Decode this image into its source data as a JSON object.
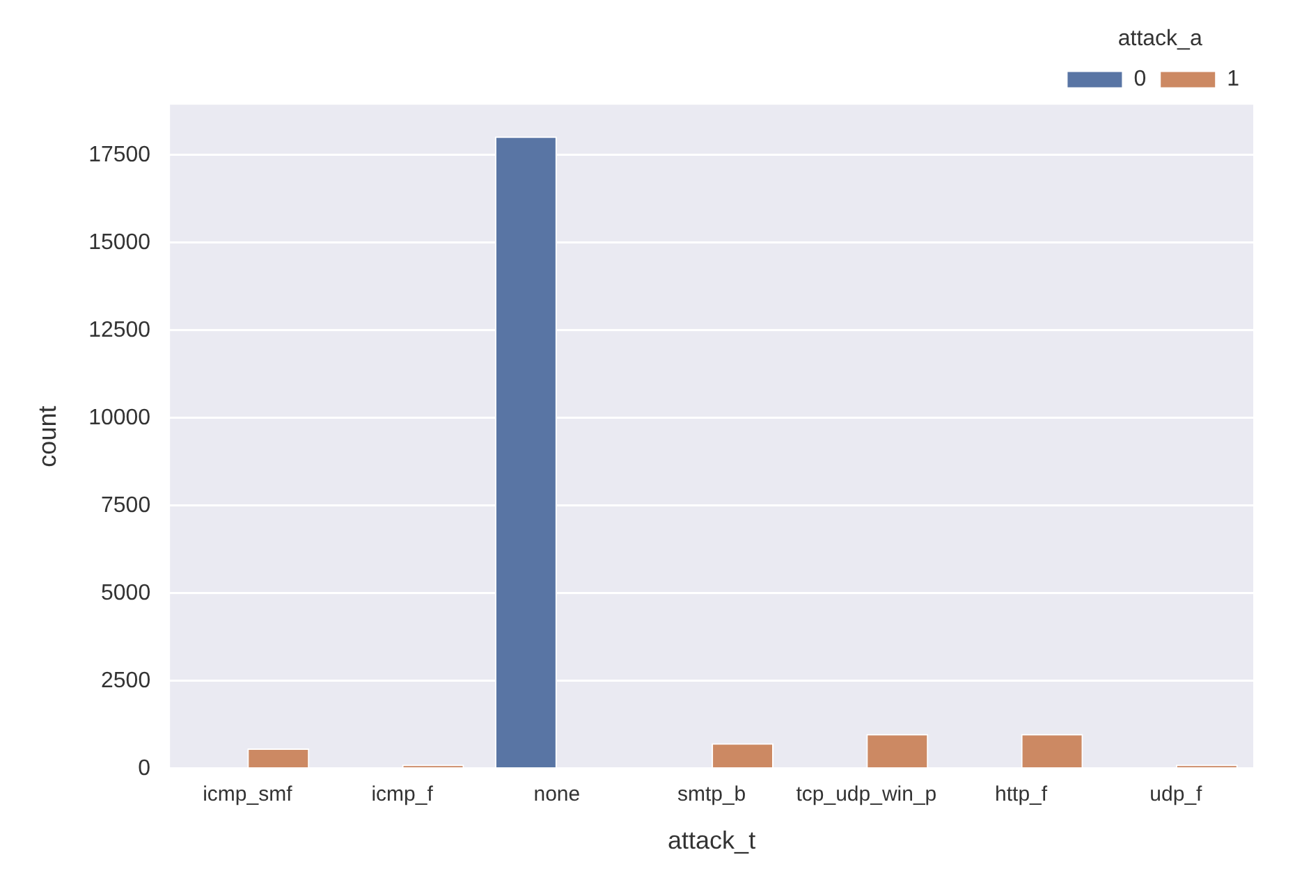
{
  "chart_data": {
    "type": "bar",
    "xlabel": "attack_t",
    "ylabel": "count",
    "legend_title": "attack_a",
    "categories": [
      "icmp_smf",
      "icmp_f",
      "none",
      "smtp_b",
      "tcp_udp_win_p",
      "http_f",
      "udp_f"
    ],
    "series": [
      {
        "name": "0",
        "color": "#5975a4",
        "values": [
          0,
          0,
          18030,
          0,
          0,
          0,
          0
        ]
      },
      {
        "name": "1",
        "color": "#cc8963",
        "values": [
          570,
          110,
          0,
          720,
          985,
          985,
          110
        ]
      }
    ],
    "ylim": [
      0,
      18940
    ],
    "yticks": [
      0,
      2500,
      5000,
      7500,
      10000,
      12500,
      15000,
      17500
    ],
    "grid": "y",
    "legend": "top right"
  }
}
